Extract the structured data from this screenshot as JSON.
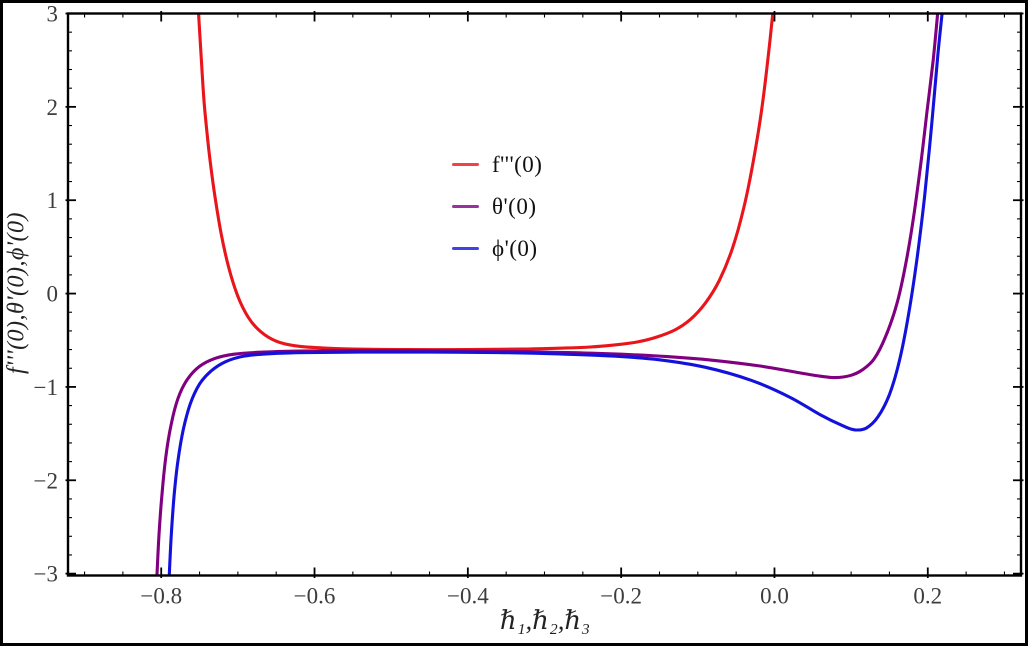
{
  "figure": {
    "background": "#ffffff",
    "border_color": "#000000"
  },
  "chart_data": {
    "type": "line",
    "title": "",
    "xlabel": "ℏ₁,ℏ₂,ℏ₃",
    "ylabel": "f'''(0),θ'(0),ϕ'(0)",
    "xlim": [
      -0.9216,
      0.3216
    ],
    "ylim": [
      -3.02,
      3.0
    ],
    "x_major_ticks": [
      -0.8,
      -0.6,
      -0.4,
      -0.2,
      0.0,
      0.2
    ],
    "x_tick_labels": [
      "−0.8",
      "−0.6",
      "−0.4",
      "−0.2",
      "0.0",
      "0.2"
    ],
    "x_minor_step": 0.05,
    "y_major_ticks": [
      -3,
      -2,
      -1,
      0,
      1,
      2,
      3
    ],
    "y_tick_labels": [
      "−3",
      "−2",
      "−1",
      "0",
      "1",
      "2",
      "3"
    ],
    "y_minor_step": 0.2,
    "grid": false,
    "frame": true,
    "frame_color": "#000000",
    "tick_label_color": "#3d3d3d",
    "legend_position": "inside upper-center-left",
    "series": [
      {
        "id": "fppp",
        "name": "f'''(0)",
        "color": "#e9151b",
        "points": [
          [
            -0.752,
            3.1
          ],
          [
            -0.748,
            2.55
          ],
          [
            -0.744,
            2.05
          ],
          [
            -0.738,
            1.55
          ],
          [
            -0.731,
            1.1
          ],
          [
            -0.722,
            0.65
          ],
          [
            -0.712,
            0.28
          ],
          [
            -0.7,
            -0.03
          ],
          [
            -0.686,
            -0.26
          ],
          [
            -0.67,
            -0.41
          ],
          [
            -0.65,
            -0.51
          ],
          [
            -0.625,
            -0.56
          ],
          [
            -0.595,
            -0.58
          ],
          [
            -0.55,
            -0.595
          ],
          [
            -0.48,
            -0.6
          ],
          [
            -0.4,
            -0.6
          ],
          [
            -0.33,
            -0.595
          ],
          [
            -0.28,
            -0.585
          ],
          [
            -0.24,
            -0.572
          ],
          [
            -0.21,
            -0.552
          ],
          [
            -0.18,
            -0.52
          ],
          [
            -0.155,
            -0.47
          ],
          [
            -0.13,
            -0.39
          ],
          [
            -0.11,
            -0.28
          ],
          [
            -0.09,
            -0.1
          ],
          [
            -0.072,
            0.14
          ],
          [
            -0.055,
            0.48
          ],
          [
            -0.04,
            0.92
          ],
          [
            -0.028,
            1.4
          ],
          [
            -0.017,
            1.95
          ],
          [
            -0.008,
            2.55
          ],
          [
            -0.001,
            3.1
          ]
        ]
      },
      {
        "id": "theta",
        "name": "θ'(0)",
        "color": "#800080",
        "points": [
          [
            -0.806,
            -3.1
          ],
          [
            -0.803,
            -2.6
          ],
          [
            -0.799,
            -2.15
          ],
          [
            -0.794,
            -1.75
          ],
          [
            -0.787,
            -1.4
          ],
          [
            -0.778,
            -1.12
          ],
          [
            -0.766,
            -0.92
          ],
          [
            -0.75,
            -0.78
          ],
          [
            -0.73,
            -0.695
          ],
          [
            -0.705,
            -0.65
          ],
          [
            -0.67,
            -0.628
          ],
          [
            -0.62,
            -0.615
          ],
          [
            -0.55,
            -0.61
          ],
          [
            -0.45,
            -0.612
          ],
          [
            -0.35,
            -0.62
          ],
          [
            -0.27,
            -0.632
          ],
          [
            -0.2,
            -0.65
          ],
          [
            -0.14,
            -0.675
          ],
          [
            -0.08,
            -0.715
          ],
          [
            -0.02,
            -0.775
          ],
          [
            0.03,
            -0.845
          ],
          [
            0.06,
            -0.885
          ],
          [
            0.08,
            -0.9
          ],
          [
            0.1,
            -0.875
          ],
          [
            0.115,
            -0.815
          ],
          [
            0.13,
            -0.7
          ],
          [
            0.145,
            -0.46
          ],
          [
            0.16,
            -0.1
          ],
          [
            0.172,
            0.35
          ],
          [
            0.182,
            0.85
          ],
          [
            0.191,
            1.4
          ],
          [
            0.199,
            1.95
          ],
          [
            0.207,
            2.5
          ],
          [
            0.214,
            3.1
          ]
        ]
      },
      {
        "id": "phi",
        "name": "ϕ'(0)",
        "color": "#1312dc",
        "points": [
          [
            -0.79,
            -3.1
          ],
          [
            -0.787,
            -2.6
          ],
          [
            -0.783,
            -2.15
          ],
          [
            -0.778,
            -1.78
          ],
          [
            -0.771,
            -1.45
          ],
          [
            -0.762,
            -1.18
          ],
          [
            -0.75,
            -0.97
          ],
          [
            -0.735,
            -0.83
          ],
          [
            -0.716,
            -0.73
          ],
          [
            -0.692,
            -0.67
          ],
          [
            -0.66,
            -0.645
          ],
          [
            -0.61,
            -0.632
          ],
          [
            -0.54,
            -0.627
          ],
          [
            -0.45,
            -0.627
          ],
          [
            -0.36,
            -0.632
          ],
          [
            -0.28,
            -0.647
          ],
          [
            -0.21,
            -0.67
          ],
          [
            -0.15,
            -0.71
          ],
          [
            -0.09,
            -0.79
          ],
          [
            -0.03,
            -0.93
          ],
          [
            0.02,
            -1.11
          ],
          [
            0.06,
            -1.3
          ],
          [
            0.09,
            -1.42
          ],
          [
            0.105,
            -1.46
          ],
          [
            0.12,
            -1.44
          ],
          [
            0.135,
            -1.32
          ],
          [
            0.15,
            -1.08
          ],
          [
            0.163,
            -0.72
          ],
          [
            0.175,
            -0.22
          ],
          [
            0.186,
            0.38
          ],
          [
            0.196,
            1.05
          ],
          [
            0.205,
            1.8
          ],
          [
            0.213,
            2.55
          ],
          [
            0.22,
            3.1
          ]
        ]
      }
    ]
  }
}
